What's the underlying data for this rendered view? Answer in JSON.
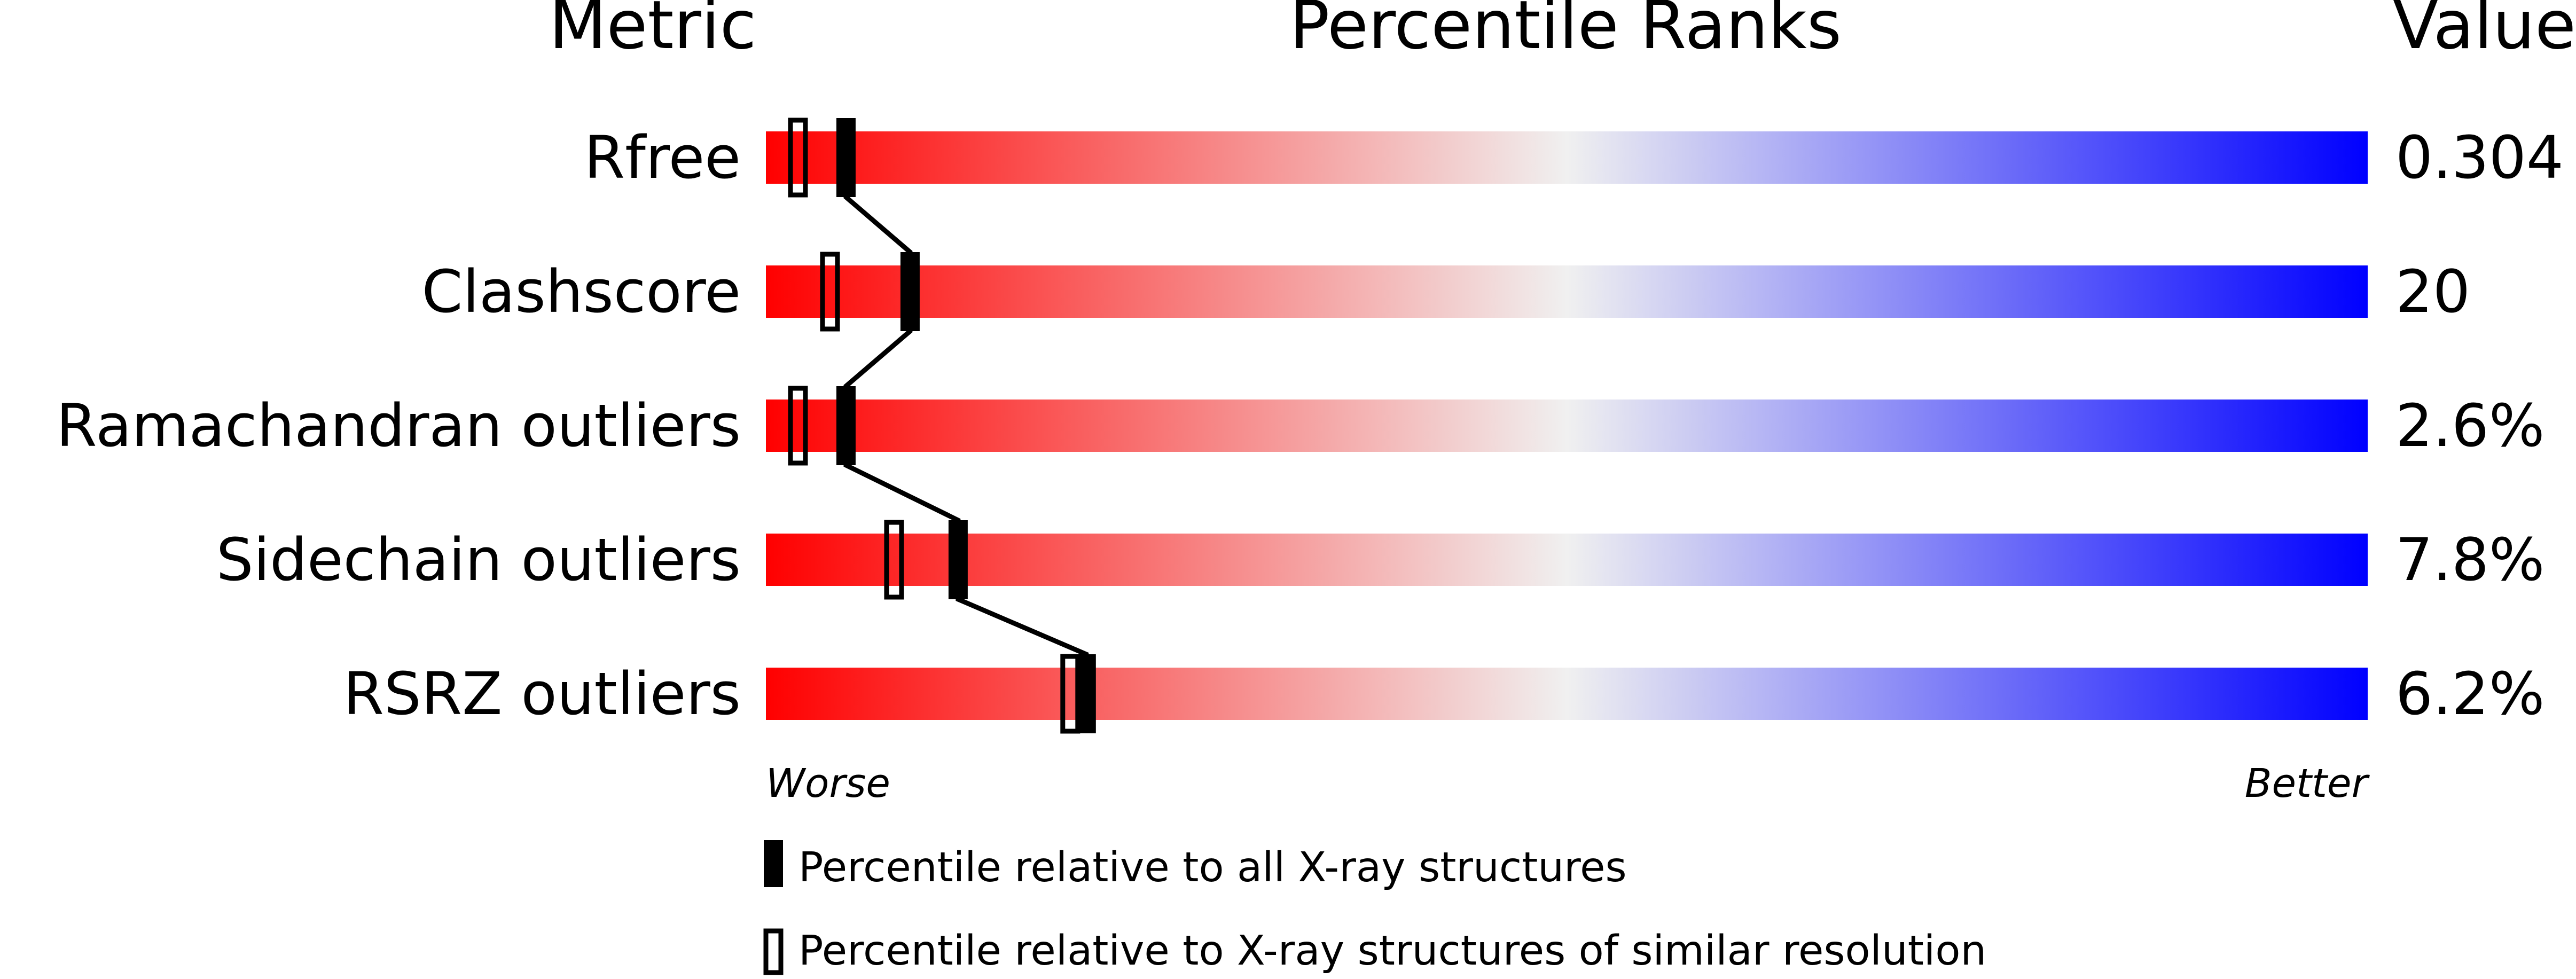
{
  "chart_data": {
    "type": "bar",
    "headers": {
      "metric": "Metric",
      "ranks": "Percentile Ranks",
      "value": "Value"
    },
    "xlim": [
      0,
      100
    ],
    "scale_labels": {
      "worse": "Worse",
      "better": "Better"
    },
    "colors": {
      "worse": "#ff0000",
      "middle": "#f0f0f0",
      "better": "#0000ff",
      "marker": "#000000"
    },
    "rows": [
      {
        "metric": "Rfree",
        "value": "0.304",
        "percentile_all": 5,
        "percentile_similar": 2
      },
      {
        "metric": "Clashscore",
        "value": "20",
        "percentile_all": 9,
        "percentile_similar": 4
      },
      {
        "metric": "Ramachandran outliers",
        "value": "2.6%",
        "percentile_all": 5,
        "percentile_similar": 2
      },
      {
        "metric": "Sidechain outliers",
        "value": "7.8%",
        "percentile_all": 12,
        "percentile_similar": 8
      },
      {
        "metric": "RSRZ outliers",
        "value": "6.2%",
        "percentile_all": 20,
        "percentile_similar": 19
      }
    ],
    "legend": [
      {
        "marker": "filled",
        "label": "Percentile relative to all X-ray structures"
      },
      {
        "marker": "open",
        "label": "Percentile relative to X-ray structures of similar resolution"
      }
    ]
  }
}
